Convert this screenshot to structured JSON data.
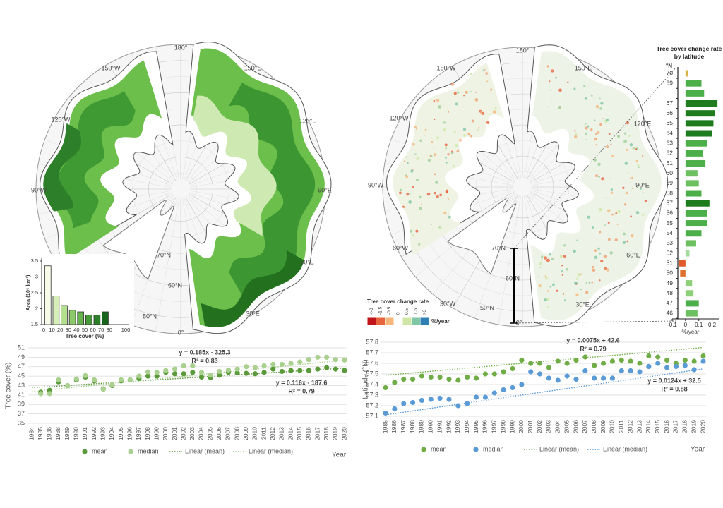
{
  "maps": [
    {
      "labels": [
        "180°",
        "150°W",
        "150°E",
        "120°W",
        "120°E",
        "90°W",
        "90°E",
        "60°W",
        "60°E",
        "30°E",
        "0°",
        "70°N",
        "60°N",
        "50°N"
      ]
    },
    {
      "labels": [
        "180°",
        "150°W",
        "150°E",
        "120°W",
        "120°E",
        "90°W",
        "90°E",
        "60°W",
        "60°E",
        "30°W",
        "30°E",
        "0°",
        "70°N",
        "60°N",
        "50°N"
      ],
      "legend": {
        "title": "Tree cover change rate",
        "unit": "%/year",
        "items": [
          {
            "label": "<-3",
            "color": "#c0151b"
          },
          {
            "label": "-1.5",
            "color": "#e8643f"
          },
          {
            "label": "-0.5",
            "color": "#f5b67a"
          },
          {
            "label": "0",
            "color": "#ffffff"
          },
          {
            "label": "0.5",
            "color": "#cfe7a6"
          },
          {
            "label": "1.5",
            "color": "#7fc7a6"
          },
          {
            "label": ">3",
            "color": "#2f7fb5"
          }
        ]
      }
    }
  ],
  "chart_data": [
    {
      "type": "histogram",
      "y_label": "Area (10⁶ km²)",
      "x_label": "Tree cover (%)",
      "bins": [
        0,
        10,
        20,
        30,
        40,
        50,
        60,
        70,
        80
      ],
      "values": [
        3.35,
        2.4,
        2.1,
        1.95,
        1.9,
        1.8,
        1.8,
        1.9
      ],
      "colors": [
        "#f7fbea",
        "#d6efb8",
        "#b3df8f",
        "#8cc96c",
        "#66b24f",
        "#47993a",
        "#2e7f2a",
        "#17651c"
      ],
      "xlim": [
        0,
        100
      ],
      "xticks": [
        0,
        10,
        20,
        30,
        40,
        50,
        60,
        70,
        80,
        100
      ],
      "ylim": [
        1.5,
        3.5
      ],
      "yticks": [
        1.5,
        2,
        2.5,
        3,
        3.5
      ]
    },
    {
      "type": "bar",
      "orientation": "horizontal",
      "title": "Tree cover change rate by latitude",
      "y_label": "°N",
      "x_label": "%/year",
      "categories": [
        "70",
        "69",
        null,
        "67",
        "66",
        "65",
        "64",
        "63",
        "62",
        "61",
        "60",
        "59",
        "58",
        "57",
        "56",
        "55",
        "54",
        "53",
        "52",
        "51",
        "50",
        "49",
        "48",
        "47",
        "46"
      ],
      "values": [
        0.02,
        0.12,
        0.14,
        0.24,
        0.22,
        0.21,
        0.2,
        0.16,
        0.13,
        0.15,
        0.09,
        0.1,
        0.12,
        0.18,
        0.16,
        0.16,
        0.12,
        0.08,
        0.03,
        -0.05,
        -0.04,
        0.05,
        0.06,
        0.1,
        0.09
      ],
      "colors": [
        "#d9b44a",
        "#4caf4a",
        "#4caf4a",
        "#1e7b1e",
        "#1e7b1e",
        "#1e7b1e",
        "#1e7b1e",
        "#4caf4a",
        "#4caf4a",
        "#4caf4a",
        "#6cc060",
        "#6cc060",
        "#4caf4a",
        "#1e7b1e",
        "#4caf4a",
        "#4caf4a",
        "#4caf4a",
        "#6cc060",
        "#a6dba0",
        "#e05a2b",
        "#e07030",
        "#8fd07a",
        "#8fd07a",
        "#4caf4a",
        "#6cc060"
      ],
      "xlim": [
        -0.1,
        0.25
      ],
      "xticks": [
        -0.1,
        0,
        0.1,
        0.2
      ]
    },
    {
      "type": "scatter",
      "y_label": "Tree cover (%)",
      "x_label": "Year",
      "categories": [
        "1984",
        "1985",
        "1986",
        "1988",
        "1989",
        "1990",
        "1991",
        "1992",
        "1993",
        "1994",
        "1995",
        "1996",
        "1997",
        "1998",
        "1999",
        "2000",
        "2001",
        "2002",
        "2003",
        "2004",
        "2005",
        "2006",
        "2007",
        "2008",
        "2009",
        "2010",
        "2011",
        "2012",
        "2013",
        "2014",
        "2015",
        "2016",
        "2017",
        "2018",
        "2019",
        "2020"
      ],
      "ylim": [
        35,
        51
      ],
      "yticks": [
        35,
        37,
        39,
        41,
        43,
        45,
        47,
        49,
        51
      ],
      "series": [
        {
          "name": "mean",
          "color": "#5a9a3a",
          "values": [
            null,
            41.6,
            42.0,
            43.8,
            43.0,
            44.2,
            44.8,
            44.0,
            42.3,
            43.0,
            44.0,
            44.2,
            44.5,
            45.0,
            45.0,
            45.8,
            45.5,
            45.5,
            45.8,
            44.8,
            44.7,
            45.2,
            45.8,
            45.7,
            45.6,
            45.5,
            45.8,
            46.5,
            46.0,
            46.2,
            46.2,
            46.2,
            46.5,
            46.8,
            46.5,
            46.2
          ],
          "trend": {
            "name": "Linear (mean)",
            "slope": 0.116,
            "intercept": -187.6,
            "equation": "y = 0.116x - 187.6",
            "r2": "R² = 0.79"
          }
        },
        {
          "name": "median",
          "color": "#a9d08e",
          "values": [
            null,
            41.3,
            41.3,
            44.2,
            43.0,
            44.4,
            45.1,
            44.2,
            42.2,
            43.2,
            44.2,
            44.2,
            45.0,
            45.9,
            45.8,
            46.2,
            46.5,
            47.2,
            47.2,
            45.8,
            45.2,
            46.0,
            46.3,
            46.5,
            47.0,
            46.8,
            47.2,
            47.5,
            47.5,
            47.7,
            48.0,
            48.5,
            49.0,
            49.0,
            48.5,
            48.4
          ],
          "trend": {
            "name": "Linear (median)",
            "slope": 0.185,
            "intercept": -325.3,
            "equation": "y = 0.185x - 325.3",
            "r2": "R² = 0.83"
          }
        }
      ]
    },
    {
      "type": "scatter",
      "y_label": "Latitude (°N)",
      "x_label": "Year",
      "categories": [
        "1985",
        "1986",
        "1987",
        "1988",
        "1989",
        "1990",
        "1991",
        "1992",
        "1993",
        "1994",
        "1995",
        "1996",
        "1997",
        "1998",
        "1999",
        "2000",
        "2001",
        "2002",
        "2003",
        "2004",
        "2005",
        "2006",
        "2007",
        "2008",
        "2009",
        "2010",
        "2011",
        "2012",
        "2013",
        "2014",
        "2015",
        "2016",
        "2017",
        "2018",
        "2019",
        "2020"
      ],
      "ylim": [
        57.1,
        57.8
      ],
      "yticks": [
        57.1,
        57.2,
        57.3,
        57.4,
        57.5,
        57.6,
        57.7,
        57.8
      ],
      "series": [
        {
          "name": "mean",
          "color": "#70ad47",
          "values": [
            57.37,
            57.42,
            57.45,
            57.45,
            57.48,
            57.47,
            57.47,
            57.45,
            57.44,
            57.47,
            57.46,
            57.5,
            57.5,
            57.52,
            57.55,
            57.63,
            57.6,
            57.6,
            57.56,
            57.62,
            57.6,
            57.63,
            57.66,
            57.58,
            57.6,
            57.62,
            57.63,
            57.62,
            57.6,
            57.67,
            57.66,
            57.63,
            57.6,
            57.63,
            57.62,
            57.67
          ],
          "trend": {
            "name": "Linear (mean)",
            "slope": 0.0075,
            "intercept": 42.6,
            "equation": "y = 0.0075x + 42.6",
            "r2": "R² = 0.79"
          }
        },
        {
          "name": "median",
          "color": "#5b9bd5",
          "values": [
            57.13,
            57.17,
            57.22,
            57.23,
            57.25,
            57.26,
            57.27,
            57.26,
            57.2,
            57.22,
            57.28,
            57.28,
            57.32,
            57.35,
            57.37,
            57.4,
            57.52,
            57.5,
            57.46,
            57.44,
            57.48,
            57.45,
            57.53,
            57.46,
            57.46,
            57.46,
            57.53,
            57.53,
            57.52,
            57.57,
            57.6,
            57.56,
            57.57,
            57.58,
            57.54,
            57.62
          ],
          "trend": {
            "name": "Linear (median)",
            "slope": 0.0124,
            "intercept": 32.5,
            "equation": "y = 0.0124x + 32.5",
            "r2": "R² = 0.88"
          }
        }
      ]
    }
  ]
}
